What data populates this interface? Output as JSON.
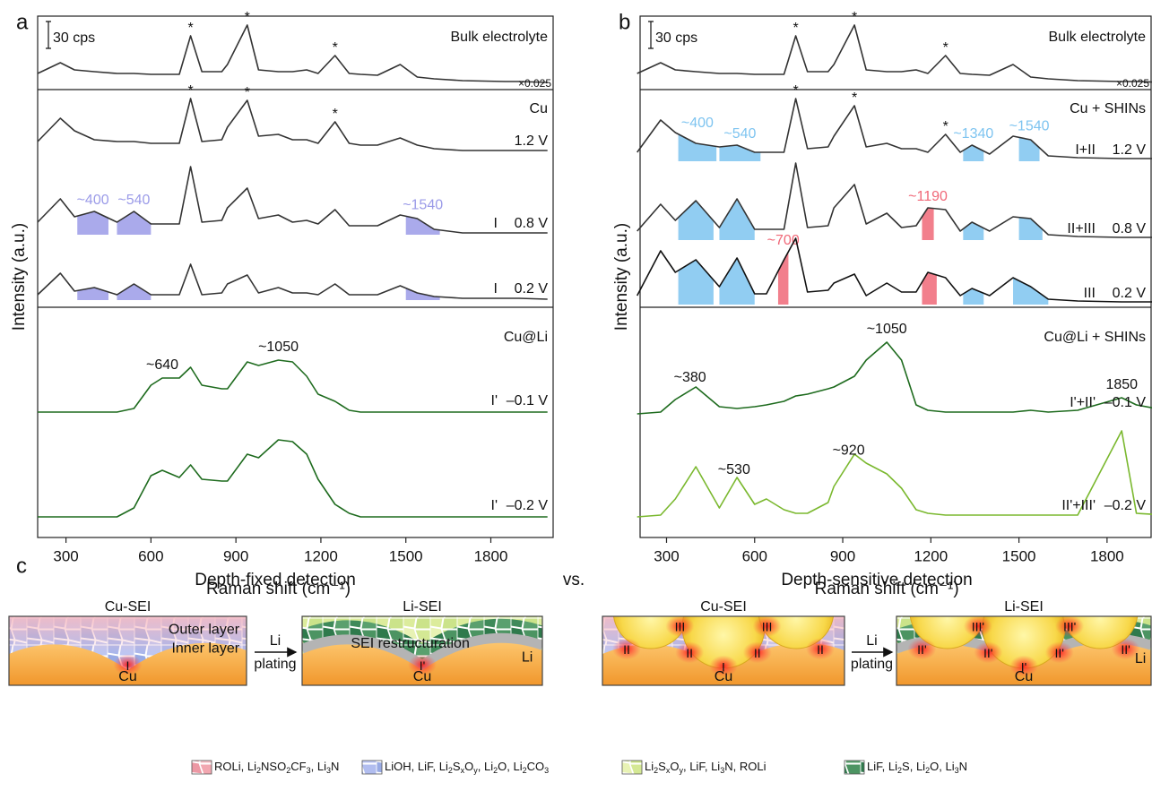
{
  "chart_data": [
    {
      "type": "line",
      "label": "a",
      "xlabel": "Raman shift (cm⁻¹)",
      "ylabel": "Intensity (a.u.)",
      "scale_bar": "30 cps",
      "xlim": [
        200,
        2020
      ],
      "xticks": [
        300,
        600,
        900,
        1200,
        1500,
        1800
      ],
      "x": [
        200,
        280,
        330,
        400,
        480,
        540,
        600,
        640,
        700,
        740,
        780,
        850,
        870,
        940,
        980,
        1050,
        1100,
        1150,
        1190,
        1250,
        1300,
        1340,
        1400,
        1480,
        1540,
        1600,
        1700,
        1850,
        1900,
        2000
      ],
      "groups": [
        {
          "title": "Bulk electrolyte",
          "series": [
            {
              "scale": "×0.025",
              "color": "#333333",
              "values": [
                10,
                22,
                14,
                12,
                10,
                10,
                9,
                9,
                9,
                52,
                12,
                12,
                20,
                64,
                14,
                12,
                12,
                14,
                10,
                30,
                10,
                9,
                8,
                20,
                6,
                4,
                2,
                1,
                1,
                0
              ],
              "annotations": [
                {
                  "text": "*",
                  "x": 740
                },
                {
                  "text": "*",
                  "x": 940
                },
                {
                  "text": "*",
                  "x": 1250
                }
              ]
            }
          ]
        },
        {
          "title": "Cu",
          "series": [
            {
              "name": "1.2 V",
              "color": "#333333",
              "values": [
                12,
                38,
                24,
                14,
                12,
                12,
                10,
                10,
                10,
                60,
                12,
                14,
                28,
                58,
                18,
                20,
                14,
                14,
                10,
                34,
                10,
                8,
                8,
                16,
                8,
                4,
                2,
                2,
                2,
                2
              ],
              "annotations": [
                {
                  "text": "*",
                  "x": 740
                },
                {
                  "text": "*",
                  "x": 940
                },
                {
                  "text": "*",
                  "x": 1250
                }
              ]
            },
            {
              "name": "0.8 V",
              "phase": "I",
              "color": "#333333",
              "values": [
                14,
                40,
                20,
                26,
                14,
                26,
                12,
                12,
                12,
                76,
                14,
                16,
                30,
                52,
                18,
                22,
                14,
                16,
                12,
                28,
                10,
                10,
                10,
                22,
                18,
                6,
                2,
                2,
                2,
                2
              ],
              "bands": [
                {
                  "label": "~400",
                  "range": [
                    340,
                    450
                  ],
                  "color": "#9b9be8"
                },
                {
                  "label": "~540",
                  "range": [
                    480,
                    600
                  ],
                  "color": "#9b9be8"
                },
                {
                  "label": "~1540",
                  "range": [
                    1500,
                    1620
                  ],
                  "color": "#9b9be8"
                }
              ]
            },
            {
              "name": "0.2 V",
              "phase": "I",
              "color": "#333333",
              "values": [
                6,
                30,
                10,
                14,
                6,
                18,
                6,
                6,
                6,
                40,
                6,
                8,
                18,
                28,
                8,
                14,
                8,
                8,
                6,
                18,
                6,
                6,
                6,
                16,
                8,
                4,
                2,
                2,
                2,
                1
              ],
              "bands": [
                {
                  "range": [
                    340,
                    450
                  ],
                  "color": "#9b9be8"
                },
                {
                  "range": [
                    480,
                    600
                  ],
                  "color": "#9b9be8"
                },
                {
                  "range": [
                    1500,
                    1620
                  ],
                  "color": "#9b9be8"
                }
              ]
            }
          ]
        },
        {
          "title": "Cu@Li",
          "series": [
            {
              "name": "–0.1 V",
              "phase": "I'",
              "color": "#1e6b1e",
              "values": [
                0,
                0,
                0,
                0,
                0,
                4,
                30,
                38,
                38,
                50,
                30,
                26,
                26,
                56,
                52,
                58,
                56,
                40,
                20,
                12,
                2,
                0,
                0,
                0,
                0,
                0,
                0,
                0,
                0,
                0
              ],
              "annotations": [
                {
                  "text": "~640",
                  "x": 640
                },
                {
                  "text": "~1050",
                  "x": 1050
                }
              ]
            },
            {
              "name": "–0.2 V",
              "phase": "I'",
              "color": "#1e6b1e",
              "values": [
                0,
                0,
                0,
                0,
                0,
                10,
                46,
                52,
                44,
                58,
                42,
                40,
                40,
                70,
                66,
                86,
                84,
                70,
                42,
                14,
                4,
                0,
                0,
                0,
                0,
                0,
                0,
                0,
                0,
                0
              ]
            }
          ]
        }
      ]
    },
    {
      "type": "line",
      "label": "b",
      "xlabel": "Raman shift (cm⁻¹)",
      "ylabel": "Intensity (a.u.)",
      "scale_bar": "30 cps",
      "xlim": [
        210,
        1950
      ],
      "xticks": [
        300,
        600,
        900,
        1200,
        1500,
        1800
      ],
      "x": [
        200,
        280,
        330,
        400,
        480,
        540,
        600,
        640,
        700,
        740,
        780,
        850,
        870,
        940,
        980,
        1050,
        1100,
        1150,
        1190,
        1250,
        1300,
        1340,
        1400,
        1480,
        1540,
        1600,
        1700,
        1850,
        1900,
        2000
      ],
      "groups": [
        {
          "title": "Bulk electrolyte",
          "series": [
            {
              "scale": "×0.025",
              "color": "#333333",
              "values": [
                10,
                22,
                14,
                12,
                10,
                10,
                9,
                9,
                9,
                52,
                12,
                12,
                20,
                64,
                14,
                12,
                12,
                14,
                10,
                30,
                10,
                9,
                8,
                20,
                6,
                4,
                2,
                1,
                1,
                0
              ],
              "annotations": [
                {
                  "text": "*",
                  "x": 740
                },
                {
                  "text": "*",
                  "x": 940
                },
                {
                  "text": "*",
                  "x": 1250
                }
              ]
            }
          ]
        },
        {
          "title": "Cu + SHINs",
          "series": [
            {
              "name": "1.2 V",
              "phase": "I+II",
              "color": "#333333",
              "values": [
                10,
                46,
                32,
                20,
                16,
                18,
                10,
                10,
                10,
                70,
                14,
                16,
                28,
                62,
                16,
                20,
                14,
                14,
                10,
                30,
                10,
                18,
                8,
                28,
                24,
                6,
                4,
                3,
                3,
                3
              ],
              "annotations": [
                {
                  "text": "*",
                  "x": 740
                },
                {
                  "text": "*",
                  "x": 940
                },
                {
                  "text": "*",
                  "x": 1250
                }
              ],
              "bands": [
                {
                  "label": "~400",
                  "range": [
                    340,
                    470
                  ],
                  "color": "#7ec4f0"
                },
                {
                  "label": "~540",
                  "range": [
                    480,
                    620
                  ],
                  "color": "#7ec4f0"
                },
                {
                  "label": "~1340",
                  "range": [
                    1310,
                    1380
                  ],
                  "color": "#7ec4f0"
                },
                {
                  "label": "~1540",
                  "range": [
                    1500,
                    1570
                  ],
                  "color": "#7ec4f0"
                }
              ]
            },
            {
              "name": "0.8 V",
              "phase": "II+III",
              "color": "#333333",
              "values": [
                10,
                40,
                22,
                44,
                14,
                46,
                12,
                12,
                12,
                86,
                14,
                16,
                36,
                62,
                18,
                30,
                14,
                16,
                36,
                34,
                10,
                20,
                10,
                26,
                24,
                6,
                4,
                3,
                3,
                3
              ],
              "bands": [
                {
                  "range": [
                    340,
                    460
                  ],
                  "color": "#7ec4f0"
                },
                {
                  "range": [
                    480,
                    600
                  ],
                  "color": "#7ec4f0"
                },
                {
                  "label": "~1190",
                  "range": [
                    1170,
                    1210
                  ],
                  "color": "#f06878"
                },
                {
                  "range": [
                    1310,
                    1380
                  ],
                  "color": "#7ec4f0"
                },
                {
                  "range": [
                    1500,
                    1580
                  ],
                  "color": "#7ec4f0"
                }
              ]
            },
            {
              "name": "0.2 V",
              "phase": "III",
              "color": "#111111",
              "values": [
                10,
                60,
                36,
                50,
                20,
                52,
                12,
                12,
                50,
                74,
                14,
                16,
                24,
                34,
                10,
                24,
                14,
                14,
                36,
                30,
                10,
                18,
                10,
                30,
                20,
                6,
                4,
                3,
                3,
                3
              ],
              "bands": [
                {
                  "range": [
                    340,
                    460
                  ],
                  "color": "#7ec4f0"
                },
                {
                  "range": [
                    480,
                    600
                  ],
                  "color": "#7ec4f0"
                },
                {
                  "label": "~700",
                  "range": [
                    680,
                    715
                  ],
                  "color": "#f06878"
                },
                {
                  "range": [
                    1170,
                    1220
                  ],
                  "color": "#f06878"
                },
                {
                  "range": [
                    1310,
                    1380
                  ],
                  "color": "#7ec4f0"
                },
                {
                  "range": [
                    1480,
                    1600
                  ],
                  "color": "#7ec4f0"
                }
              ]
            }
          ]
        },
        {
          "title": "Cu@Li + SHINs",
          "series": [
            {
              "name": "–0.1 V",
              "phase": "I'+II'",
              "color": "#1e6b1e",
              "values": [
                0,
                2,
                16,
                30,
                8,
                6,
                8,
                10,
                14,
                20,
                22,
                28,
                30,
                42,
                60,
                80,
                60,
                10,
                4,
                2,
                2,
                2,
                2,
                2,
                4,
                2,
                4,
                18,
                10,
                4
              ],
              "annotations": [
                {
                  "text": "~380",
                  "x": 380
                },
                {
                  "text": "~1050",
                  "x": 1050
                },
                {
                  "text": "1850",
                  "x": 1850
                }
              ]
            },
            {
              "name": "–0.2 V",
              "phase": "II'+III'",
              "color": "#7ab82e",
              "values": [
                0,
                2,
                20,
                56,
                10,
                44,
                14,
                20,
                8,
                4,
                4,
                16,
                34,
                70,
                60,
                48,
                32,
                8,
                4,
                2,
                2,
                2,
                2,
                2,
                2,
                2,
                2,
                96,
                4,
                2
              ],
              "annotations": [
                {
                  "text": "~530",
                  "x": 530
                },
                {
                  "text": "~920",
                  "x": 920
                }
              ]
            }
          ]
        }
      ]
    }
  ],
  "figure_c": {
    "label": "c",
    "left_heading": "Depth-fixed detection",
    "vs": "vs.",
    "right_heading": "Depth-sensitive detection",
    "panels": [
      {
        "title": "Cu-SEI",
        "substrate": "Cu",
        "labels": [
          "Outer layer",
          "Inner layer"
        ],
        "sites": [
          "I"
        ]
      },
      {
        "title": "Li-SEI",
        "substrate": "Cu",
        "labels": [
          "SEI restructuration",
          "Li"
        ],
        "sites": [
          "I'"
        ]
      },
      {
        "title": "Cu-SEI",
        "substrate": "Cu",
        "sites": [
          "I",
          "II",
          "II",
          "II",
          "II",
          "III",
          "III"
        ]
      },
      {
        "title": "Li-SEI",
        "substrate": "Cu",
        "labels": [
          "Li"
        ],
        "sites": [
          "I'",
          "II'",
          "II'",
          "II'",
          "II'",
          "III'",
          "III'"
        ]
      }
    ],
    "arrows": [
      [
        "Li",
        "plating"
      ],
      [
        "Li",
        "plating"
      ]
    ],
    "legend": [
      "ROLi, Li2NSO2CF3, Li3N",
      "LiOH, LiF, Li2SxOy, Li2O, Li2CO3",
      "Li2SxOy, LiF, Li3N, ROLi",
      "LiF, Li2S, Li2O,  Li3N"
    ]
  }
}
